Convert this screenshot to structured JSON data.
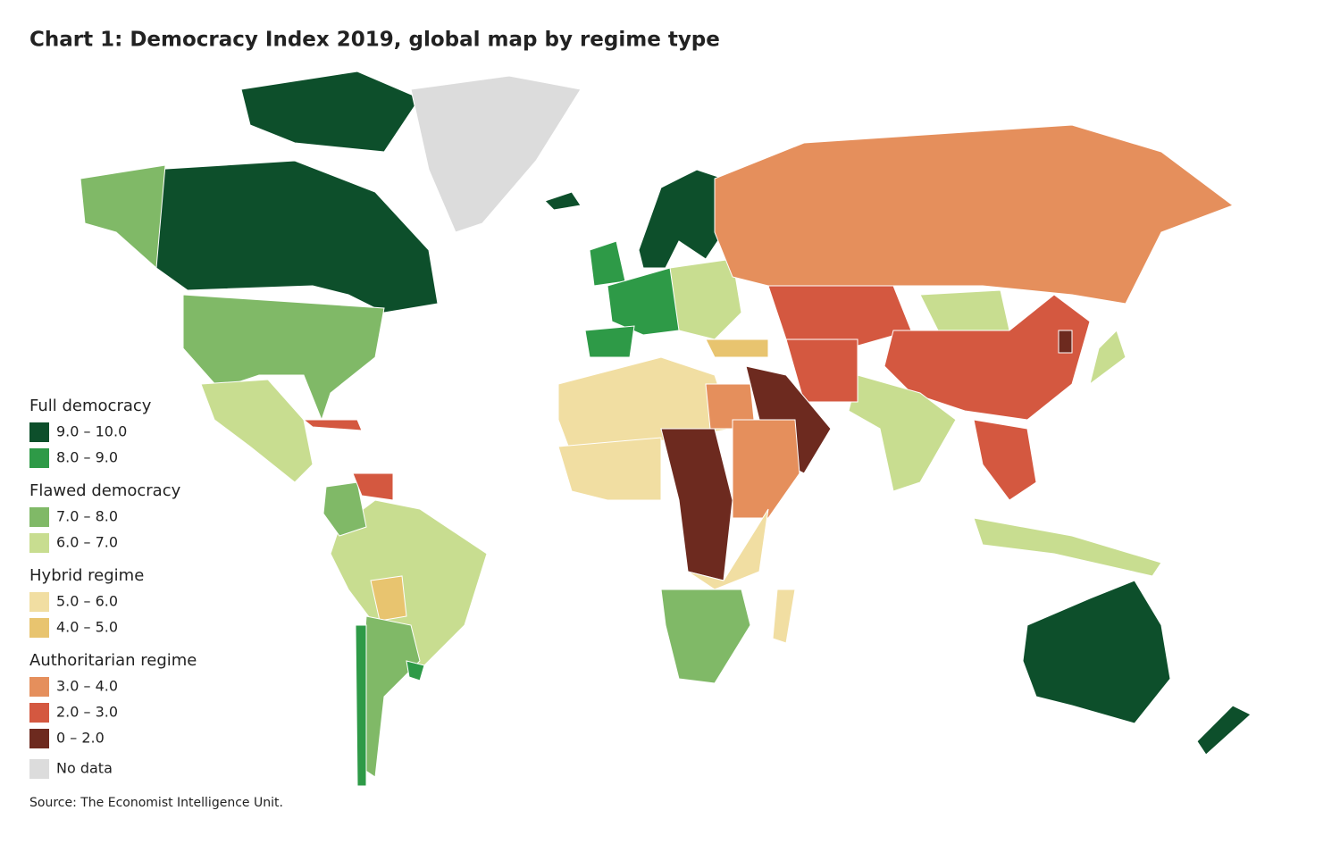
{
  "title": "Chart 1: Democracy Index 2019, global map by regime type",
  "legend": {
    "groups": [
      {
        "title": "Full democracy",
        "items": [
          {
            "label": "9.0 – 10.0",
            "color": "#0d4f2b"
          },
          {
            "label": "8.0 – 9.0",
            "color": "#2e9a47"
          }
        ]
      },
      {
        "title": "Flawed democracy",
        "items": [
          {
            "label": "7.0 – 8.0",
            "color": "#80b967"
          },
          {
            "label": "6.0 – 7.0",
            "color": "#c8dd90"
          }
        ]
      },
      {
        "title": "Hybrid regime",
        "items": [
          {
            "label": "5.0 – 6.0",
            "color": "#f1dea2"
          },
          {
            "label": "4.0 – 5.0",
            "color": "#e8c46f"
          }
        ]
      },
      {
        "title": "Authoritarian regime",
        "items": [
          {
            "label": "3.0 – 4.0",
            "color": "#e58f5c"
          },
          {
            "label": "2.0 – 3.0",
            "color": "#d45840"
          },
          {
            "label": "0 – 2.0",
            "color": "#6d2a1f"
          }
        ]
      }
    ],
    "no_data": {
      "label": "No data",
      "color": "#dcdcdc"
    }
  },
  "source": "Source: The Economist Intelligence Unit."
}
